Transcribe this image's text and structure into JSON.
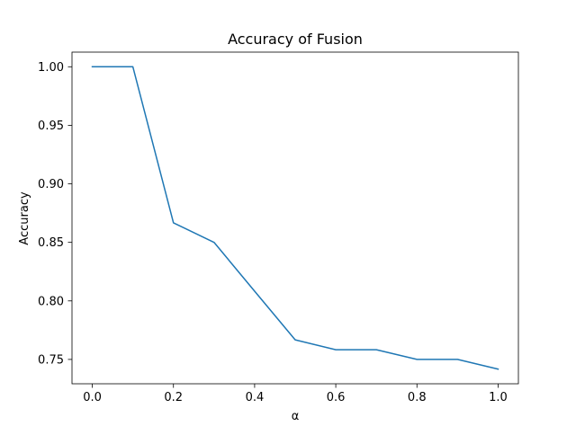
{
  "chart_data": {
    "type": "line",
    "title": "Accuracy of Fusion",
    "xlabel": "α",
    "ylabel": "Accuracy",
    "xlim": [
      -0.05,
      1.05
    ],
    "ylim": [
      0.7292,
      1.0125
    ],
    "x_ticks": [
      0.0,
      0.2,
      0.4,
      0.6,
      0.8,
      1.0
    ],
    "x_tick_labels": [
      "0.0",
      "0.2",
      "0.4",
      "0.6",
      "0.8",
      "1.0"
    ],
    "y_ticks": [
      0.75,
      0.8,
      0.85,
      0.9,
      0.95,
      1.0
    ],
    "y_tick_labels": [
      "0.75",
      "0.80",
      "0.85",
      "0.90",
      "0.95",
      "1.00"
    ],
    "grid": false,
    "legend": "none",
    "series": [
      {
        "color": "#1f77b4",
        "x": [
          0.0,
          0.1,
          0.2,
          0.3,
          0.4,
          0.5,
          0.6,
          0.7,
          0.8,
          0.9,
          1.0
        ],
        "values": [
          1.0,
          1.0,
          0.8667,
          0.85,
          0.8083,
          0.7667,
          0.7583,
          0.7583,
          0.75,
          0.75,
          0.7417
        ]
      }
    ]
  }
}
